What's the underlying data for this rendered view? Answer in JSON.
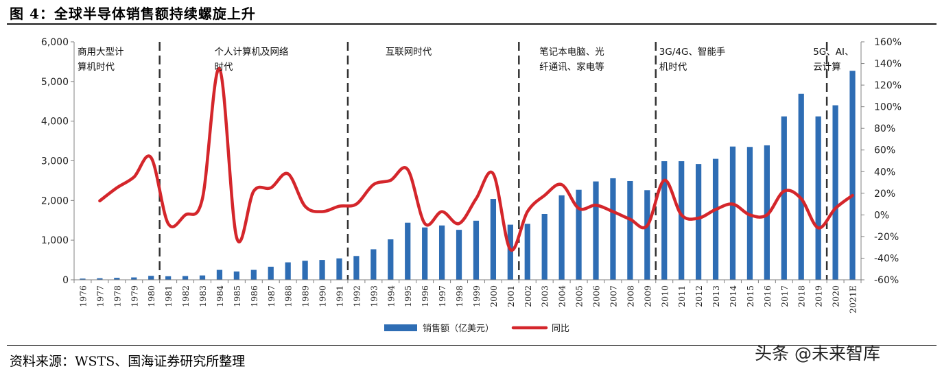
{
  "figure": {
    "title": "图 4：全球半导体销售额持续螺旋上升",
    "source": "资料来源：WSTS、国海证券研究所整理",
    "watermark": "头条 @未来智库"
  },
  "colors": {
    "bar": "#2e6db4",
    "line": "#d4262b",
    "divider": "#333333",
    "axis": "#7f7f7f"
  },
  "chart_data": {
    "type": "bar+line",
    "categories": [
      "1976",
      "1977",
      "1978",
      "1979",
      "1980",
      "1981",
      "1982",
      "1983",
      "1984",
      "1985",
      "1986",
      "1987",
      "1988",
      "1989",
      "1990",
      "1991",
      "1992",
      "1993",
      "1994",
      "1995",
      "1996",
      "1997",
      "1998",
      "1999",
      "2000",
      "2001",
      "2002",
      "2003",
      "2004",
      "2005",
      "2006",
      "2007",
      "2008",
      "2009",
      "2010",
      "2011",
      "2012",
      "2013",
      "2014",
      "2015",
      "2016",
      "2017",
      "2018",
      "2019",
      "2020",
      "2021E"
    ],
    "series": [
      {
        "name": "销售额（亿美元）",
        "type": "bar",
        "axis": "left",
        "values": [
          30,
          39,
          50,
          60,
          100,
          90,
          95,
          110,
          250,
          210,
          250,
          330,
          440,
          480,
          500,
          540,
          600,
          770,
          1020,
          1440,
          1320,
          1370,
          1260,
          1490,
          2040,
          1390,
          1410,
          1660,
          2130,
          2270,
          2480,
          2560,
          2490,
          2260,
          2990,
          2990,
          2920,
          3050,
          3360,
          3350,
          3390,
          4120,
          4690,
          4120,
          4400,
          5270
        ]
      },
      {
        "name": "同比",
        "type": "line",
        "axis": "right",
        "values": [
          null,
          13,
          25,
          35,
          53,
          -8,
          0,
          15,
          135,
          -21,
          22,
          25,
          38,
          8,
          3,
          8,
          10,
          28,
          32,
          42,
          -8,
          3,
          -8,
          15,
          38,
          -32,
          3,
          18,
          28,
          6,
          9,
          3,
          -4,
          -10,
          32,
          0,
          -3,
          5,
          10,
          0,
          0,
          22,
          15,
          -12,
          6,
          18
        ]
      }
    ],
    "y_left": {
      "min": 0,
      "max": 6000,
      "ticks": [
        "0",
        "1,000",
        "2,000",
        "3,000",
        "4,000",
        "5,000",
        "6,000"
      ]
    },
    "y_right": {
      "min": -60,
      "max": 160,
      "ticks": [
        "-60%",
        "-40%",
        "-20%",
        "0%",
        "20%",
        "40%",
        "60%",
        "80%",
        "100%",
        "120%",
        "140%",
        "160%"
      ]
    },
    "dividers_after": [
      "1980",
      "1991",
      "2001",
      "2009",
      "2019"
    ],
    "eras": [
      {
        "lines": [
          "商用大型计",
          "算机时代"
        ],
        "start": "1976"
      },
      {
        "lines": [
          "个人计算机及网络",
          "时代"
        ],
        "start": "1984"
      },
      {
        "lines": [
          "互联网时代"
        ],
        "start": "1994"
      },
      {
        "lines": [
          "笔记本电脑、光",
          "纤通讯、家电等"
        ],
        "start": "2003"
      },
      {
        "lines": [
          "3G/4G、智能手",
          "机时代"
        ],
        "start": "2010"
      },
      {
        "lines": [
          "5G、AI、",
          "云计算"
        ],
        "start": "2019"
      }
    ],
    "legend": [
      "销售额（亿美元）",
      "同比"
    ],
    "legend_position": "bottom",
    "grid": false
  }
}
